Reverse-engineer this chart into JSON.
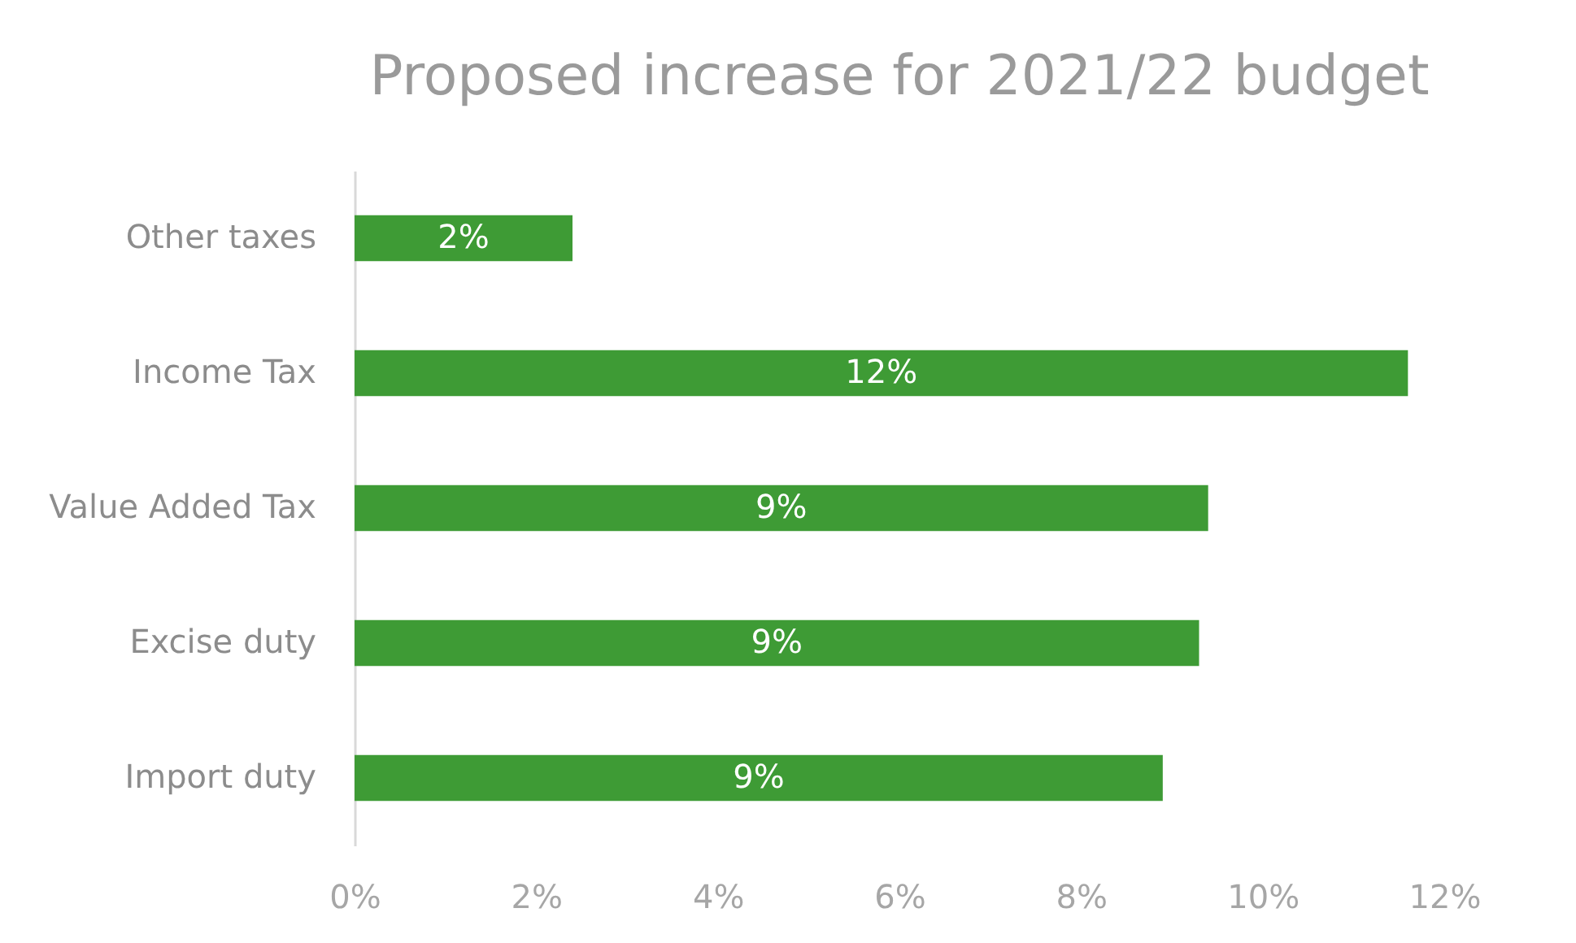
{
  "chart_data": {
    "type": "bar",
    "orientation": "horizontal",
    "title": "Proposed increase for 2021/22 budget",
    "categories": [
      "Other taxes",
      "Income Tax",
      "Value Added Tax",
      "Excise duty",
      "Import duty"
    ],
    "values": [
      2.4,
      11.6,
      9.4,
      9.3,
      8.9
    ],
    "value_labels": [
      "2%",
      "12%",
      "9%",
      "9%",
      "9%"
    ],
    "color": "#3e9b35",
    "xlim": [
      0,
      12
    ],
    "xticks": [
      {
        "value": 0,
        "label": "0%"
      },
      {
        "value": 2,
        "label": "2%"
      },
      {
        "value": 4,
        "label": "4%"
      },
      {
        "value": 6,
        "label": "6%"
      },
      {
        "value": 8,
        "label": "8%"
      },
      {
        "value": 10,
        "label": "10%"
      },
      {
        "value": 12,
        "label": "12%"
      }
    ],
    "grid": false
  }
}
